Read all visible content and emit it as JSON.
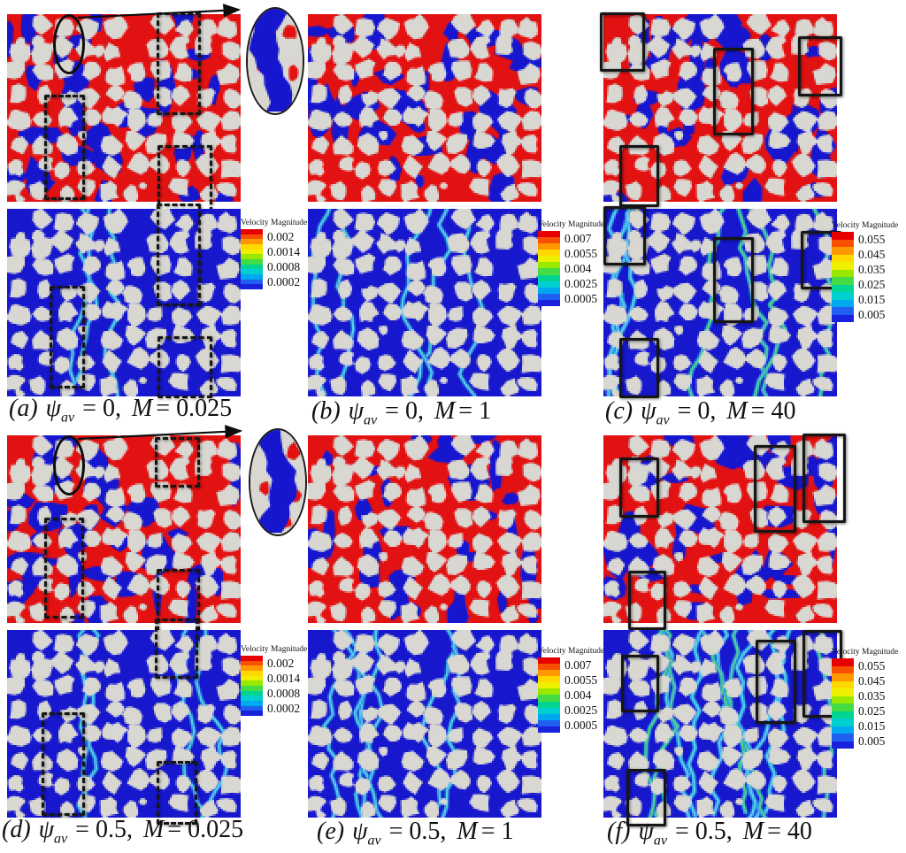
{
  "figure": {
    "symbols": {
      "psi": "ψ",
      "psi_sub": "av",
      "m": "M"
    },
    "map_colors": {
      "grain_gray": "#d8d7d2",
      "phase_red": "#e31212",
      "phase_blue": "#1616cf",
      "velocity_blue": "#1717cd",
      "streak_cyan": "#5ad9ee",
      "streak_green": "#52de7a"
    },
    "legend_colors": [
      "#e80000",
      "#f85000",
      "#ff9800",
      "#ffd800",
      "#eef000",
      "#9ae800",
      "#44dc44",
      "#00d490",
      "#00cfd0",
      "#00a8f0",
      "#2060f0",
      "#1822dd"
    ],
    "panels": [
      {
        "id": "a",
        "psi_av": "0",
        "M": "0.025",
        "caption": {
          "index": "(a)",
          "psi_eq": "= 0,",
          "m_eq": "= 0.025"
        },
        "colorbar": {
          "title": "Velocity Magnitude",
          "labels": [
            "0.002",
            "0.0014",
            "0.0008",
            "0.0002"
          ]
        },
        "annotations": {
          "style": "dashed",
          "inset": true,
          "phase_rects": [
            [
              0.64,
              -0.01,
              0.165,
              0.52
            ],
            [
              0.16,
              0.43,
              0.15,
              0.53
            ],
            [
              0.645,
              0.7,
              0.21,
              0.33
            ]
          ],
          "velocity_rects": [
            [
              0.64,
              -0.03,
              0.167,
              0.52
            ],
            [
              0.18,
              0.41,
              0.13,
              0.52
            ],
            [
              0.645,
              0.68,
              0.21,
              0.3
            ]
          ]
        }
      },
      {
        "id": "b",
        "psi_av": "0",
        "M": "1",
        "caption": {
          "index": "(b)",
          "psi_eq": "= 0,",
          "m_eq": "= 1"
        },
        "colorbar": {
          "title": "Velocity Magnitude",
          "labels": [
            "0.007",
            "0.0055",
            "0.004",
            "0.0025",
            "0.0005"
          ]
        }
      },
      {
        "id": "c",
        "psi_av": "0",
        "M": "40",
        "caption": {
          "index": "(c)",
          "psi_eq": "= 0,",
          "m_eq": "= 40"
        },
        "colorbar": {
          "title": "Velocity Magnitude",
          "labels": [
            "0.055",
            "0.045",
            "0.035",
            "0.025",
            "0.015",
            "0.005"
          ]
        },
        "annotations": {
          "style": "solid",
          "inset": false,
          "phase_rects": [
            [
              -0.015,
              -0.01,
              0.17,
              0.29
            ],
            [
              0.47,
              0.18,
              0.15,
              0.44
            ],
            [
              0.835,
              0.12,
              0.165,
              0.29
            ],
            [
              0.07,
              0.7,
              0.146,
              0.3
            ]
          ],
          "velocity_rects": [
            [
              0.0,
              -0.015,
              0.16,
              0.29
            ],
            [
              0.47,
              0.15,
              0.15,
              0.43
            ],
            [
              0.843,
              0.12,
              0.153,
              0.28
            ],
            [
              0.07,
              0.69,
              0.146,
              0.29
            ]
          ]
        }
      },
      {
        "id": "d",
        "psi_av": "0.5",
        "M": "0.025",
        "caption": {
          "index": "(d)",
          "psi_eq": "= 0.5,",
          "m_eq": "= 0.025"
        },
        "colorbar": {
          "title": "Velocity Magnitude",
          "labels": [
            "0.002",
            "0.0014",
            "0.0008",
            "0.0002"
          ]
        },
        "annotations": {
          "style": "dashed",
          "inset": true,
          "phase_rects": [
            [
              0.633,
              0.01,
              0.17,
              0.24
            ],
            [
              0.16,
              0.44,
              0.145,
              0.51
            ],
            [
              0.64,
              0.71,
              0.164,
              0.35
            ]
          ],
          "velocity_rects": [
            [
              0.633,
              -0.06,
              0.163,
              0.29
            ],
            [
              0.147,
              0.44,
              0.164,
              0.52
            ],
            [
              0.64,
              0.7,
              0.152,
              0.31
            ]
          ]
        }
      },
      {
        "id": "e",
        "psi_av": "0.5",
        "M": "1",
        "caption": {
          "index": "(e)",
          "psi_eq": "= 0.5,",
          "m_eq": "= 1"
        },
        "colorbar": {
          "title": "Velocity Magnitude",
          "labels": [
            "0.007",
            "0.0055",
            "0.004",
            "0.0025",
            "0.0005"
          ]
        }
      },
      {
        "id": "f",
        "psi_av": "0.5",
        "M": "40",
        "caption": {
          "index": "(f)",
          "psi_eq": "= 0.5,",
          "m_eq": "= 40"
        },
        "colorbar": {
          "title": "Velocity Magnitude",
          "labels": [
            "0.055",
            "0.045",
            "0.035",
            "0.025",
            "0.015",
            "0.005"
          ]
        },
        "annotations": {
          "style": "solid",
          "inset": false,
          "phase_rects": [
            [
              0.069,
              0.12,
              0.147,
              0.29
            ],
            [
              0.644,
              0.05,
              0.16,
              0.44
            ],
            [
              0.854,
              -0.01,
              0.16,
              0.45
            ],
            [
              0.107,
              0.72,
              0.14,
              0.29
            ]
          ],
          "velocity_rects": [
            [
              0.075,
              0.13,
              0.14,
              0.28
            ],
            [
              0.65,
              0.05,
              0.153,
              0.42
            ],
            [
              0.854,
              0.0,
              0.147,
              0.44
            ],
            [
              0.1,
              0.74,
              0.147,
              0.28
            ]
          ]
        }
      }
    ]
  }
}
